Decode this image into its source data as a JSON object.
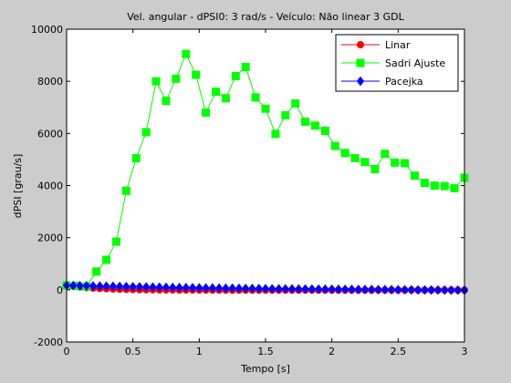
{
  "chart_data": {
    "type": "line",
    "title": "Vel. angular - dPSI0: 3 rad/s - Veículo: Não linear 3 GDL",
    "xlabel": "Tempo [s]",
    "ylabel": "dPSI [grau/s]",
    "xlim": [
      0,
      3
    ],
    "ylim": [
      -2000,
      10000
    ],
    "xticks": [
      0,
      0.5,
      1,
      1.5,
      2,
      2.5,
      3
    ],
    "xtick_labels": [
      "0",
      "0.5",
      "1",
      "1.5",
      "2",
      "2.5",
      "3"
    ],
    "yticks": [
      -2000,
      0,
      2000,
      4000,
      6000,
      8000,
      10000
    ],
    "ytick_labels": [
      "-2000",
      "0",
      "2000",
      "4000",
      "6000",
      "8000",
      "10000"
    ],
    "grid": false,
    "legend_position": "top-right",
    "series": [
      {
        "name": "Linar",
        "color": "#ff0000",
        "marker": "circle",
        "x": [
          0,
          0.05,
          0.1,
          0.15,
          0.2,
          0.25,
          0.3,
          0.35,
          0.4,
          0.45,
          0.5,
          0.55,
          0.6,
          0.65,
          0.7,
          0.75,
          0.8,
          0.85,
          0.9,
          0.95,
          1.0,
          1.05,
          1.1,
          1.15,
          1.2,
          1.25,
          1.3,
          1.35,
          1.4,
          1.45,
          1.5,
          1.55,
          1.6,
          1.65,
          1.7,
          1.75,
          1.8,
          1.85,
          1.9,
          1.95,
          2.0,
          2.05,
          2.1,
          2.15,
          2.2,
          2.25,
          2.3,
          2.35,
          2.4,
          2.45,
          2.5,
          2.55,
          2.6,
          2.65,
          2.7,
          2.75,
          2.8,
          2.85,
          2.9,
          2.95,
          3.0
        ],
        "y": [
          170,
          140,
          110,
          85,
          65,
          50,
          40,
          30,
          22,
          15,
          10,
          5,
          2,
          0,
          -2,
          -4,
          -5,
          -6,
          -7,
          -8,
          -8,
          -9,
          -9,
          -10,
          -10,
          -10,
          -10,
          -10,
          -10,
          -10,
          -10,
          -10,
          -10,
          -10,
          -10,
          -10,
          -10,
          -10,
          -10,
          -10,
          -10,
          -10,
          -10,
          -10,
          -10,
          -10,
          -10,
          -10,
          -10,
          -10,
          -10,
          -10,
          -10,
          -10,
          -10,
          -10,
          -10,
          -10,
          -10,
          -10,
          -10
        ]
      },
      {
        "name": "Sadri Ajuste",
        "color": "#00ff00",
        "marker": "square",
        "x": [
          0,
          0.075,
          0.15,
          0.225,
          0.3,
          0.375,
          0.45,
          0.525,
          0.6,
          0.675,
          0.75,
          0.825,
          0.9,
          0.975,
          1.05,
          1.125,
          1.2,
          1.275,
          1.35,
          1.425,
          1.5,
          1.575,
          1.65,
          1.725,
          1.8,
          1.875,
          1.95,
          2.025,
          2.1,
          2.175,
          2.25,
          2.325,
          2.4,
          2.475,
          2.55,
          2.625,
          2.7,
          2.775,
          2.85,
          2.925,
          3.0
        ],
        "y": [
          170,
          150,
          130,
          700,
          1150,
          1850,
          3800,
          5050,
          6050,
          8000,
          7250,
          8100,
          9050,
          8250,
          6800,
          7600,
          7350,
          8200,
          8550,
          7380,
          6950,
          5980,
          6700,
          7150,
          6450,
          6300,
          6100,
          5520,
          5250,
          5050,
          4900,
          4630,
          5220,
          4880,
          4860,
          4380,
          4100,
          4000,
          3980,
          3900,
          4300
        ]
      },
      {
        "name": "Pacejka",
        "color": "#0000ff",
        "marker": "diamond",
        "x": [
          0,
          0.05,
          0.1,
          0.15,
          0.2,
          0.25,
          0.3,
          0.35,
          0.4,
          0.45,
          0.5,
          0.55,
          0.6,
          0.65,
          0.7,
          0.75,
          0.8,
          0.85,
          0.9,
          0.95,
          1.0,
          1.05,
          1.1,
          1.15,
          1.2,
          1.25,
          1.3,
          1.35,
          1.4,
          1.45,
          1.5,
          1.55,
          1.6,
          1.65,
          1.7,
          1.75,
          1.8,
          1.85,
          1.9,
          1.95,
          2.0,
          2.05,
          2.1,
          2.15,
          2.2,
          2.25,
          2.3,
          2.35,
          2.4,
          2.45,
          2.5,
          2.55,
          2.6,
          2.65,
          2.7,
          2.75,
          2.8,
          2.85,
          2.9,
          2.95,
          3.0
        ],
        "y": [
          170,
          165,
          160,
          155,
          150,
          145,
          140,
          135,
          130,
          125,
          120,
          115,
          110,
          105,
          100,
          96,
          92,
          88,
          84,
          80,
          76,
          72,
          69,
          66,
          63,
          60,
          57,
          54,
          51,
          48,
          45,
          42,
          40,
          38,
          36,
          34,
          32,
          30,
          28,
          26,
          24,
          22,
          20,
          18,
          16,
          14,
          12,
          10,
          8,
          6,
          4,
          2,
          0,
          -2,
          -4,
          -6,
          -8,
          -10,
          -12,
          -14,
          -16
        ]
      }
    ]
  }
}
